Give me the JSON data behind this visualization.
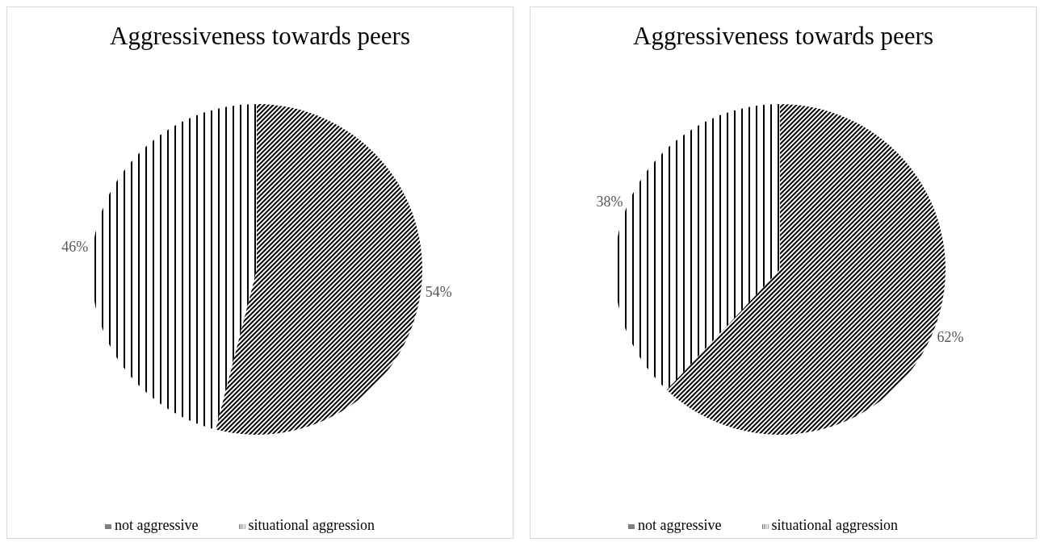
{
  "chart_data": [
    {
      "type": "pie",
      "title": "Aggressiveness towards peers",
      "categories": [
        "not aggressive",
        "situational aggression"
      ],
      "values": [
        54,
        46
      ],
      "value_labels": [
        "54%",
        "46%"
      ],
      "colors": [
        "#000000",
        "#000000"
      ],
      "legend": "bottom"
    },
    {
      "type": "pie",
      "title": "Aggressiveness towards peers",
      "categories": [
        "not aggressive",
        "situational aggression"
      ],
      "values": [
        62,
        38
      ],
      "value_labels": [
        "62%",
        "38%"
      ],
      "colors": [
        "#000000",
        "#000000"
      ],
      "legend": "bottom"
    }
  ]
}
